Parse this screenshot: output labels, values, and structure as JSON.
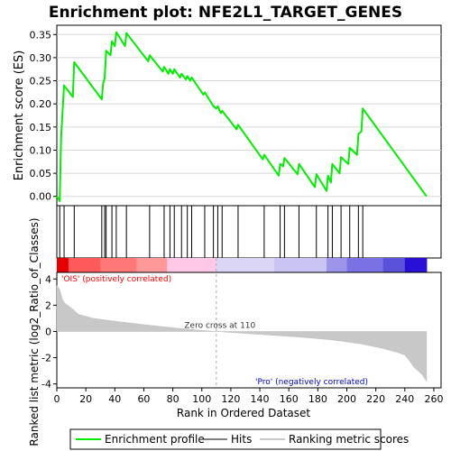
{
  "chart_data": {
    "type": "line",
    "title": "Enrichment plot: NFE2L1_TARGET_GENES",
    "n_ranks": 255,
    "enrichment_panel": {
      "ylabel": "Enrichment score (ES)",
      "ylim": [
        -0.02,
        0.37
      ],
      "yticks": [
        0.0,
        0.05,
        0.1,
        0.15,
        0.2,
        0.25,
        0.3,
        0.35
      ],
      "ytick_labels": [
        "0.00",
        "0.05",
        "0.10",
        "0.15",
        "0.20",
        "0.25",
        "0.30",
        "0.35"
      ],
      "series": [
        {
          "name": "Enrichment profile",
          "color": "#00ee00",
          "x": [
            0,
            2,
            3,
            5,
            11,
            12,
            31,
            32,
            33,
            34,
            37,
            38,
            40,
            41,
            47,
            48,
            63,
            64,
            73,
            74,
            77,
            78,
            80,
            81,
            85,
            86,
            89,
            90,
            92,
            93,
            101,
            102,
            107,
            108,
            110,
            111,
            113,
            114,
            124,
            125,
            142,
            143,
            153,
            154,
            156,
            157,
            166,
            167,
            178,
            179,
            186,
            187,
            189,
            190,
            195,
            196,
            201,
            202,
            207,
            208,
            210,
            211,
            255
          ],
          "y": [
            0.0,
            -0.01,
            0.13,
            0.24,
            0.215,
            0.29,
            0.21,
            0.245,
            0.255,
            0.315,
            0.305,
            0.335,
            0.325,
            0.355,
            0.325,
            0.353,
            0.292,
            0.305,
            0.27,
            0.28,
            0.265,
            0.275,
            0.265,
            0.275,
            0.257,
            0.265,
            0.253,
            0.26,
            0.25,
            0.257,
            0.22,
            0.225,
            0.2,
            0.195,
            0.19,
            0.195,
            0.18,
            0.185,
            0.145,
            0.155,
            0.08,
            0.09,
            0.045,
            0.07,
            0.065,
            0.083,
            0.048,
            0.07,
            0.02,
            0.048,
            0.012,
            0.045,
            0.03,
            0.07,
            0.05,
            0.085,
            0.07,
            0.105,
            0.09,
            0.135,
            0.14,
            0.19,
            0.0
          ]
        }
      ]
    },
    "hits_panel": {
      "hit_ranks": [
        2,
        5,
        12,
        31,
        33,
        34,
        38,
        41,
        48,
        64,
        74,
        78,
        81,
        86,
        90,
        93,
        102,
        108,
        111,
        114,
        125,
        143,
        154,
        157,
        167,
        179,
        187,
        190,
        196,
        202,
        208,
        211
      ]
    },
    "heatmap_bar": {
      "zero_cross_rank": 110,
      "regions": [
        {
          "from": 0,
          "to": 8,
          "color": "#e60000"
        },
        {
          "from": 8,
          "to": 30,
          "color": "#ff5a5a"
        },
        {
          "from": 30,
          "to": 55,
          "color": "#ff7878"
        },
        {
          "from": 55,
          "to": 76,
          "color": "#ff9898"
        },
        {
          "from": 76,
          "to": 110,
          "color": "#ffc8e6"
        },
        {
          "from": 110,
          "to": 150,
          "color": "#dcd6f6"
        },
        {
          "from": 150,
          "to": 186,
          "color": "#c9c4f2"
        },
        {
          "from": 186,
          "to": 200,
          "color": "#9c95ea"
        },
        {
          "from": 200,
          "to": 225,
          "color": "#7a72e4"
        },
        {
          "from": 225,
          "to": 240,
          "color": "#5b52da"
        },
        {
          "from": 240,
          "to": 255,
          "color": "#2a10d6"
        }
      ]
    },
    "metric_panel": {
      "ylabel": "Ranked list metric (log2_Ratio_of_Classes)",
      "xlabel": "Rank in Ordered Dataset",
      "ylim": [
        -4.3,
        4.5
      ],
      "yticks": [
        -4,
        -2,
        0,
        2,
        4
      ],
      "ytick_labels": [
        "-4",
        "-2",
        "0",
        "2",
        "4"
      ],
      "xlim": [
        0,
        265
      ],
      "xticks": [
        0,
        20,
        40,
        60,
        80,
        100,
        120,
        140,
        160,
        180,
        200,
        220,
        240,
        260
      ],
      "xtick_labels": [
        "0",
        "20",
        "40",
        "60",
        "80",
        "100",
        "120",
        "140",
        "160",
        "180",
        "200",
        "220",
        "240",
        "260"
      ],
      "metric_knots": {
        "rank": [
          0,
          2,
          4,
          6,
          10,
          15,
          25,
          40,
          60,
          80,
          100,
          110,
          130,
          150,
          170,
          190,
          210,
          225,
          235,
          240,
          243,
          246,
          249,
          252,
          255
        ],
        "value": [
          3.5,
          3.2,
          2.4,
          2.1,
          1.8,
          1.3,
          1.0,
          0.78,
          0.52,
          0.28,
          0.08,
          0.0,
          -0.15,
          -0.3,
          -0.45,
          -0.65,
          -0.95,
          -1.3,
          -1.6,
          -1.8,
          -2.2,
          -2.7,
          -3.0,
          -3.3,
          -3.8
        ]
      },
      "annotations": {
        "positive": "'OIS' (positively correlated)",
        "negative": "'Pro' (negatively correlated)",
        "zero_cross": "Zero cross at 110"
      }
    },
    "legend": {
      "placement": "bottom",
      "items": [
        {
          "label": "Enrichment profile",
          "color": "#00ee00"
        },
        {
          "label": "Hits",
          "color": "#000000"
        },
        {
          "label": "Ranking metric scores",
          "color": "#c8c8c8"
        }
      ]
    },
    "colors": {
      "positive_text": "#ff0000",
      "negative_text": "#0000cc",
      "metric_fill": "#c8c8c8",
      "zero_line": "#bbbbbb"
    }
  }
}
